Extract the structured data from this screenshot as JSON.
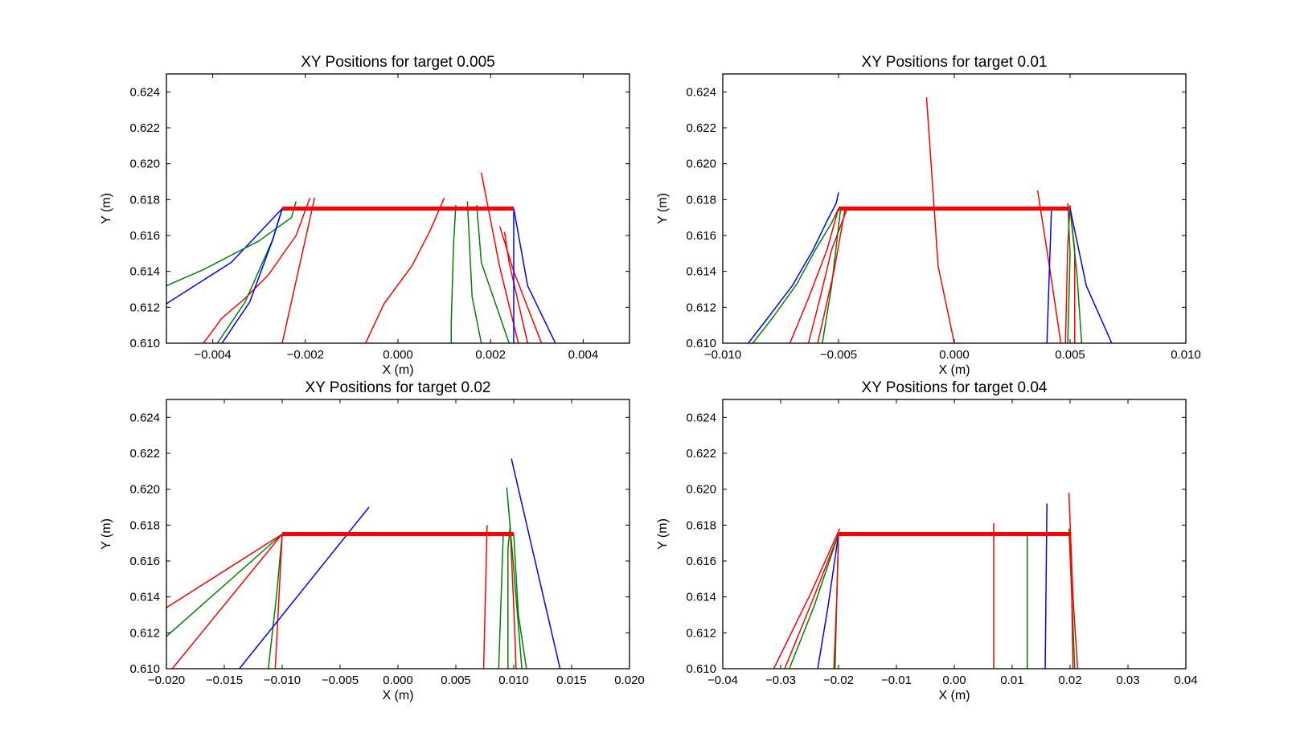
{
  "colors": {
    "red": "#ff0000",
    "green": "#008000",
    "blue": "#0000ff",
    "axes": "#000000",
    "background": "#ffffff"
  },
  "chart_data": [
    {
      "type": "line",
      "title": "XY Positions for target 0.005",
      "xlabel": "X (m)",
      "ylabel": "Y (m)",
      "xlim": [
        -0.005,
        0.005
      ],
      "ylim": [
        0.61,
        0.625
      ],
      "xticks": [
        -0.004,
        -0.002,
        0.0,
        0.002,
        0.004
      ],
      "xticklabels": [
        "−0.004",
        "−0.002",
        "0.000",
        "0.002",
        "0.004"
      ],
      "yticks": [
        0.61,
        0.612,
        0.614,
        0.616,
        0.618,
        0.62,
        0.622,
        0.624
      ],
      "yticklabels": [
        "0.610",
        "0.612",
        "0.614",
        "0.616",
        "0.618",
        "0.620",
        "0.622",
        "0.624"
      ],
      "grid": false,
      "target_line": {
        "x": [
          -0.0025,
          0.0025
        ],
        "y": [
          0.6175,
          0.6175
        ],
        "color": "red"
      },
      "series": [
        {
          "color": "blue",
          "x": [
            -0.005,
            -0.0036,
            -0.0025
          ],
          "y": [
            0.6122,
            0.6145,
            0.6175
          ]
        },
        {
          "color": "green",
          "x": [
            -0.005,
            -0.0042,
            -0.003,
            -0.0023,
            -0.0022
          ],
          "y": [
            0.6132,
            0.6141,
            0.6157,
            0.617,
            0.6179
          ]
        },
        {
          "color": "red",
          "x": [
            -0.0042,
            -0.0038,
            -0.0033,
            -0.0028,
            -0.0022,
            -0.0019
          ],
          "y": [
            0.61,
            0.6114,
            0.6125,
            0.6138,
            0.616,
            0.6181
          ]
        },
        {
          "color": "green",
          "x": [
            -0.0039,
            -0.0033,
            -0.0027,
            -0.0025
          ],
          "y": [
            0.61,
            0.6123,
            0.6158,
            0.6175
          ]
        },
        {
          "color": "blue",
          "x": [
            -0.0038,
            -0.0032,
            -0.0027,
            -0.0025
          ],
          "y": [
            0.61,
            0.6123,
            0.6158,
            0.6175
          ]
        },
        {
          "color": "red",
          "x": [
            -0.0025,
            -0.0018
          ],
          "y": [
            0.61,
            0.6181
          ]
        },
        {
          "color": "red",
          "x": [
            -0.0007,
            -0.0003,
            0.0003,
            0.0007,
            0.001
          ],
          "y": [
            0.61,
            0.6122,
            0.6143,
            0.6163,
            0.6181
          ]
        },
        {
          "color": "green",
          "x": [
            0.00115,
            0.00115,
            0.0012,
            0.00125
          ],
          "y": [
            0.61,
            0.6111,
            0.6155,
            0.6177
          ]
        },
        {
          "color": "green",
          "x": [
            0.0018,
            0.0016,
            0.0015
          ],
          "y": [
            0.61,
            0.6126,
            0.6179
          ]
        },
        {
          "color": "green",
          "x": [
            0.0024,
            0.0018,
            0.0017
          ],
          "y": [
            0.61,
            0.6145,
            0.6177
          ]
        },
        {
          "color": "red",
          "x": [
            0.0026,
            0.0022,
            0.0018
          ],
          "y": [
            0.61,
            0.6142,
            0.6195
          ]
        },
        {
          "color": "red",
          "x": [
            0.0031,
            0.0025,
            0.0022
          ],
          "y": [
            0.61,
            0.614,
            0.6165
          ]
        },
        {
          "color": "red",
          "x": [
            0.0028,
            0.0024,
            0.0023
          ],
          "y": [
            0.61,
            0.6145,
            0.6162
          ]
        },
        {
          "color": "blue",
          "x": [
            0.0025,
            0.0025
          ],
          "y": [
            0.61,
            0.6175
          ]
        },
        {
          "color": "blue",
          "x": [
            0.0034,
            0.0028,
            0.0025
          ],
          "y": [
            0.61,
            0.6132,
            0.6175
          ]
        }
      ]
    },
    {
      "type": "line",
      "title": "XY Positions for target 0.01",
      "xlabel": "X (m)",
      "ylabel": "Y (m)",
      "xlim": [
        -0.01,
        0.01
      ],
      "ylim": [
        0.61,
        0.625
      ],
      "xticks": [
        -0.01,
        -0.005,
        0.0,
        0.005,
        0.01
      ],
      "xticklabels": [
        "−0.010",
        "−0.005",
        "0.000",
        "0.005",
        "0.010"
      ],
      "yticks": [
        0.61,
        0.612,
        0.614,
        0.616,
        0.618,
        0.62,
        0.622,
        0.624
      ],
      "yticklabels": [
        "0.610",
        "0.612",
        "0.614",
        "0.616",
        "0.618",
        "0.620",
        "0.622",
        "0.624"
      ],
      "grid": false,
      "target_line": {
        "x": [
          -0.005,
          0.005
        ],
        "y": [
          0.6175,
          0.6175
        ],
        "color": "red"
      },
      "series": [
        {
          "color": "blue",
          "x": [
            -0.0089,
            -0.008,
            -0.007,
            -0.0061,
            -0.0055,
            -0.0051,
            -0.005
          ],
          "y": [
            0.61,
            0.6115,
            0.6132,
            0.6152,
            0.6168,
            0.6178,
            0.6184
          ]
        },
        {
          "color": "green",
          "x": [
            -0.0087,
            -0.0078,
            -0.0068,
            -0.006,
            -0.0053,
            -0.005
          ],
          "y": [
            0.61,
            0.6115,
            0.6133,
            0.6152,
            0.6167,
            0.6175
          ]
        },
        {
          "color": "red",
          "x": [
            -0.0071,
            -0.0063,
            -0.0055,
            -0.005
          ],
          "y": [
            0.61,
            0.6125,
            0.6152,
            0.6175
          ]
        },
        {
          "color": "red",
          "x": [
            -0.0063,
            -0.0058,
            -0.0053,
            -0.0046
          ],
          "y": [
            0.61,
            0.6125,
            0.6152,
            0.6176
          ]
        },
        {
          "color": "green",
          "x": [
            -0.0057,
            -0.0053,
            -0.0049
          ],
          "y": [
            0.61,
            0.6132,
            0.6176
          ]
        },
        {
          "color": "red",
          "x": [
            -0.0059,
            -0.0052,
            -0.0047
          ],
          "y": [
            0.61,
            0.614,
            0.6176
          ]
        },
        {
          "color": "red",
          "x": [
            0.0,
            -0.0007,
            -0.0012
          ],
          "y": [
            0.61,
            0.6143,
            0.6237
          ]
        },
        {
          "color": "red",
          "x": [
            0.0046,
            0.0042,
            0.0036
          ],
          "y": [
            0.61,
            0.6135,
            0.6185
          ]
        },
        {
          "color": "blue",
          "x": [
            0.004,
            0.0042
          ],
          "y": [
            0.61,
            0.6176
          ]
        },
        {
          "color": "red",
          "x": [
            0.0048,
            0.0049,
            0.005
          ],
          "y": [
            0.61,
            0.6155,
            0.6177
          ]
        },
        {
          "color": "green",
          "x": [
            0.0049,
            0.005,
            0.0049
          ],
          "y": [
            0.61,
            0.615,
            0.6178
          ]
        },
        {
          "color": "red",
          "x": [
            0.0052,
            0.0052,
            0.005
          ],
          "y": [
            0.61,
            0.6152,
            0.6175
          ]
        },
        {
          "color": "green",
          "x": [
            0.0055,
            0.0053,
            0.005
          ],
          "y": [
            0.61,
            0.6138,
            0.6175
          ]
        },
        {
          "color": "blue",
          "x": [
            0.0068,
            0.0057,
            0.005
          ],
          "y": [
            0.61,
            0.6132,
            0.6175
          ]
        }
      ]
    },
    {
      "type": "line",
      "title": "XY Positions for target 0.02",
      "xlabel": "X (m)",
      "ylabel": "Y (m)",
      "xlim": [
        -0.02,
        0.02
      ],
      "ylim": [
        0.61,
        0.625
      ],
      "xticks": [
        -0.02,
        -0.015,
        -0.01,
        -0.005,
        0.0,
        0.005,
        0.01,
        0.015,
        0.02
      ],
      "xticklabels": [
        "−0.020",
        "−0.015",
        "−0.010",
        "−0.005",
        "0.000",
        "0.005",
        "0.010",
        "0.015",
        "0.020"
      ],
      "yticks": [
        0.61,
        0.612,
        0.614,
        0.616,
        0.618,
        0.62,
        0.622,
        0.624
      ],
      "yticklabels": [
        "0.610",
        "0.612",
        "0.614",
        "0.616",
        "0.618",
        "0.620",
        "0.622",
        "0.624"
      ],
      "grid": false,
      "target_line": {
        "x": [
          -0.01,
          0.01
        ],
        "y": [
          0.6175,
          0.6175
        ],
        "color": "red"
      },
      "series": [
        {
          "color": "red",
          "x": [
            -0.02,
            -0.01
          ],
          "y": [
            0.6134,
            0.6175
          ]
        },
        {
          "color": "green",
          "x": [
            -0.02,
            -0.01
          ],
          "y": [
            0.6118,
            0.6175
          ]
        },
        {
          "color": "red",
          "x": [
            -0.0195,
            -0.01
          ],
          "y": [
            0.61,
            0.6175
          ]
        },
        {
          "color": "green",
          "x": [
            -0.0112,
            -0.0105,
            -0.01
          ],
          "y": [
            0.61,
            0.614,
            0.6175
          ]
        },
        {
          "color": "red",
          "x": [
            -0.0106,
            -0.01
          ],
          "y": [
            0.61,
            0.6175
          ]
        },
        {
          "color": "blue",
          "x": [
            -0.0137,
            -0.0025
          ],
          "y": [
            0.61,
            0.619
          ]
        },
        {
          "color": "red",
          "x": [
            0.0074,
            0.0077
          ],
          "y": [
            0.61,
            0.618
          ]
        },
        {
          "color": "green",
          "x": [
            0.0087,
            0.0091
          ],
          "y": [
            0.61,
            0.6176
          ]
        },
        {
          "color": "green",
          "x": [
            0.0095,
            0.0095,
            0.0097
          ],
          "y": [
            0.61,
            0.6167,
            0.618
          ]
        },
        {
          "color": "red",
          "x": [
            0.0102,
            0.01,
            0.0097
          ],
          "y": [
            0.61,
            0.6135,
            0.6177
          ]
        },
        {
          "color": "green",
          "x": [
            0.0107,
            0.0102,
            0.0094
          ],
          "y": [
            0.61,
            0.614,
            0.6201
          ]
        },
        {
          "color": "green",
          "x": [
            0.0111,
            0.0104,
            0.01
          ],
          "y": [
            0.61,
            0.613,
            0.6175
          ]
        },
        {
          "color": "blue",
          "x": [
            0.014,
            0.0098
          ],
          "y": [
            0.61,
            0.6217
          ]
        }
      ]
    },
    {
      "type": "line",
      "title": "XY Positions for target 0.04",
      "xlabel": "X (m)",
      "ylabel": "Y (m)",
      "xlim": [
        -0.04,
        0.04
      ],
      "ylim": [
        0.61,
        0.625
      ],
      "xticks": [
        -0.04,
        -0.03,
        -0.02,
        -0.01,
        0.0,
        0.01,
        0.02,
        0.03,
        0.04
      ],
      "xticklabels": [
        "−0.04",
        "−0.03",
        "−0.02",
        "−0.01",
        "0.00",
        "0.01",
        "0.02",
        "0.03",
        "0.04"
      ],
      "yticks": [
        0.61,
        0.612,
        0.614,
        0.616,
        0.618,
        0.62,
        0.622,
        0.624
      ],
      "yticklabels": [
        "0.610",
        "0.612",
        "0.614",
        "0.616",
        "0.618",
        "0.620",
        "0.622",
        "0.624"
      ],
      "grid": false,
      "target_line": {
        "x": [
          -0.02,
          0.02
        ],
        "y": [
          0.6175,
          0.6175
        ],
        "color": "red"
      },
      "series": [
        {
          "color": "red",
          "x": [
            -0.0312,
            -0.0248,
            -0.0198
          ],
          "y": [
            0.61,
            0.6142,
            0.6178
          ]
        },
        {
          "color": "red",
          "x": [
            -0.0293,
            -0.0245,
            -0.02
          ],
          "y": [
            0.61,
            0.6138,
            0.6175
          ]
        },
        {
          "color": "green",
          "x": [
            -0.0285,
            -0.0242,
            -0.02
          ],
          "y": [
            0.61,
            0.6135,
            0.6175
          ]
        },
        {
          "color": "blue",
          "x": [
            -0.0236,
            -0.0218,
            -0.02
          ],
          "y": [
            0.61,
            0.6135,
            0.6175
          ]
        },
        {
          "color": "green",
          "x": [
            -0.0206,
            -0.0203,
            -0.02
          ],
          "y": [
            0.61,
            0.614,
            0.6175
          ]
        },
        {
          "color": "red",
          "x": [
            -0.0208,
            -0.0203,
            -0.02
          ],
          "y": [
            0.61,
            0.614,
            0.6175
          ]
        },
        {
          "color": "red",
          "x": [
            0.0068,
            0.0068
          ],
          "y": [
            0.61,
            0.6181
          ]
        },
        {
          "color": "green",
          "x": [
            0.0126,
            0.0126
          ],
          "y": [
            0.61,
            0.6175
          ]
        },
        {
          "color": "blue",
          "x": [
            0.0157,
            0.016
          ],
          "y": [
            0.61,
            0.6192
          ]
        },
        {
          "color": "red",
          "x": [
            0.0213,
            0.0205,
            0.0198
          ],
          "y": [
            0.61,
            0.614,
            0.6198
          ]
        },
        {
          "color": "green",
          "x": [
            0.0208,
            0.0203,
            0.0198
          ],
          "y": [
            0.61,
            0.614,
            0.6178
          ]
        },
        {
          "color": "red",
          "x": [
            0.0205,
            0.0203,
            0.0199
          ],
          "y": [
            0.61,
            0.614,
            0.6175
          ]
        }
      ]
    }
  ]
}
